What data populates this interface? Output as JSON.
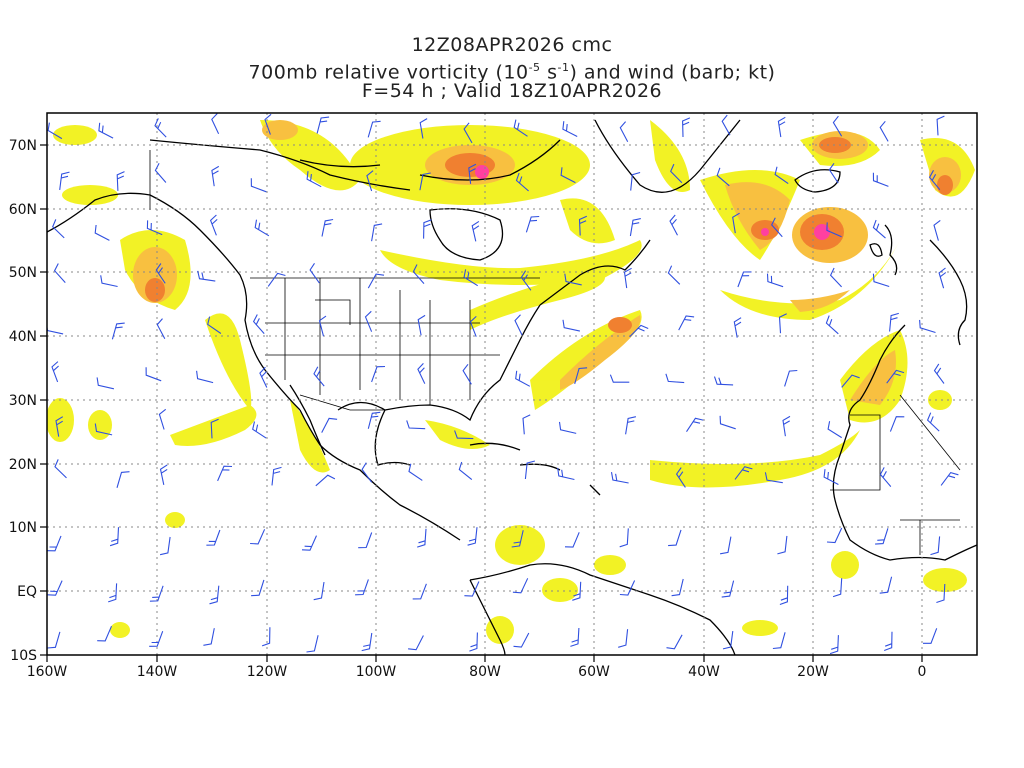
{
  "header": {
    "line1": "12Z08APR2026 cmc",
    "line2_pre": "700mb relative vorticity (10",
    "line2_exp1": "-5",
    "line2_mid": " s",
    "line2_exp2": "-1",
    "line2_post": ") and wind (barb; kt)",
    "line3": "F=54 h ; Valid 18Z10APR2026"
  },
  "map": {
    "lon_range": [
      -160,
      10
    ],
    "lat_range": [
      -10,
      75
    ],
    "lon_ticks": [
      "160W",
      "140W",
      "120W",
      "100W",
      "80W",
      "60W",
      "40W",
      "20W",
      "0"
    ],
    "lat_ticks": [
      "70N",
      "60N",
      "50N",
      "40N",
      "30N",
      "20N",
      "10N",
      "EQ",
      "10S"
    ],
    "gridlines": true,
    "colors": {
      "vort_low": "#f0f000",
      "vort_mid": "#f8c840",
      "vort_high": "#f08030",
      "vort_max": "#ff40a0",
      "barb": "#3050e0",
      "coast": "#000000"
    },
    "vorticity_maxima": [
      {
        "lon": -81,
        "lat": 65
      },
      {
        "lon": -19,
        "lat": 56
      },
      {
        "lon": -29,
        "lat": 56
      },
      {
        "lon": -142,
        "lat": 47
      }
    ]
  }
}
